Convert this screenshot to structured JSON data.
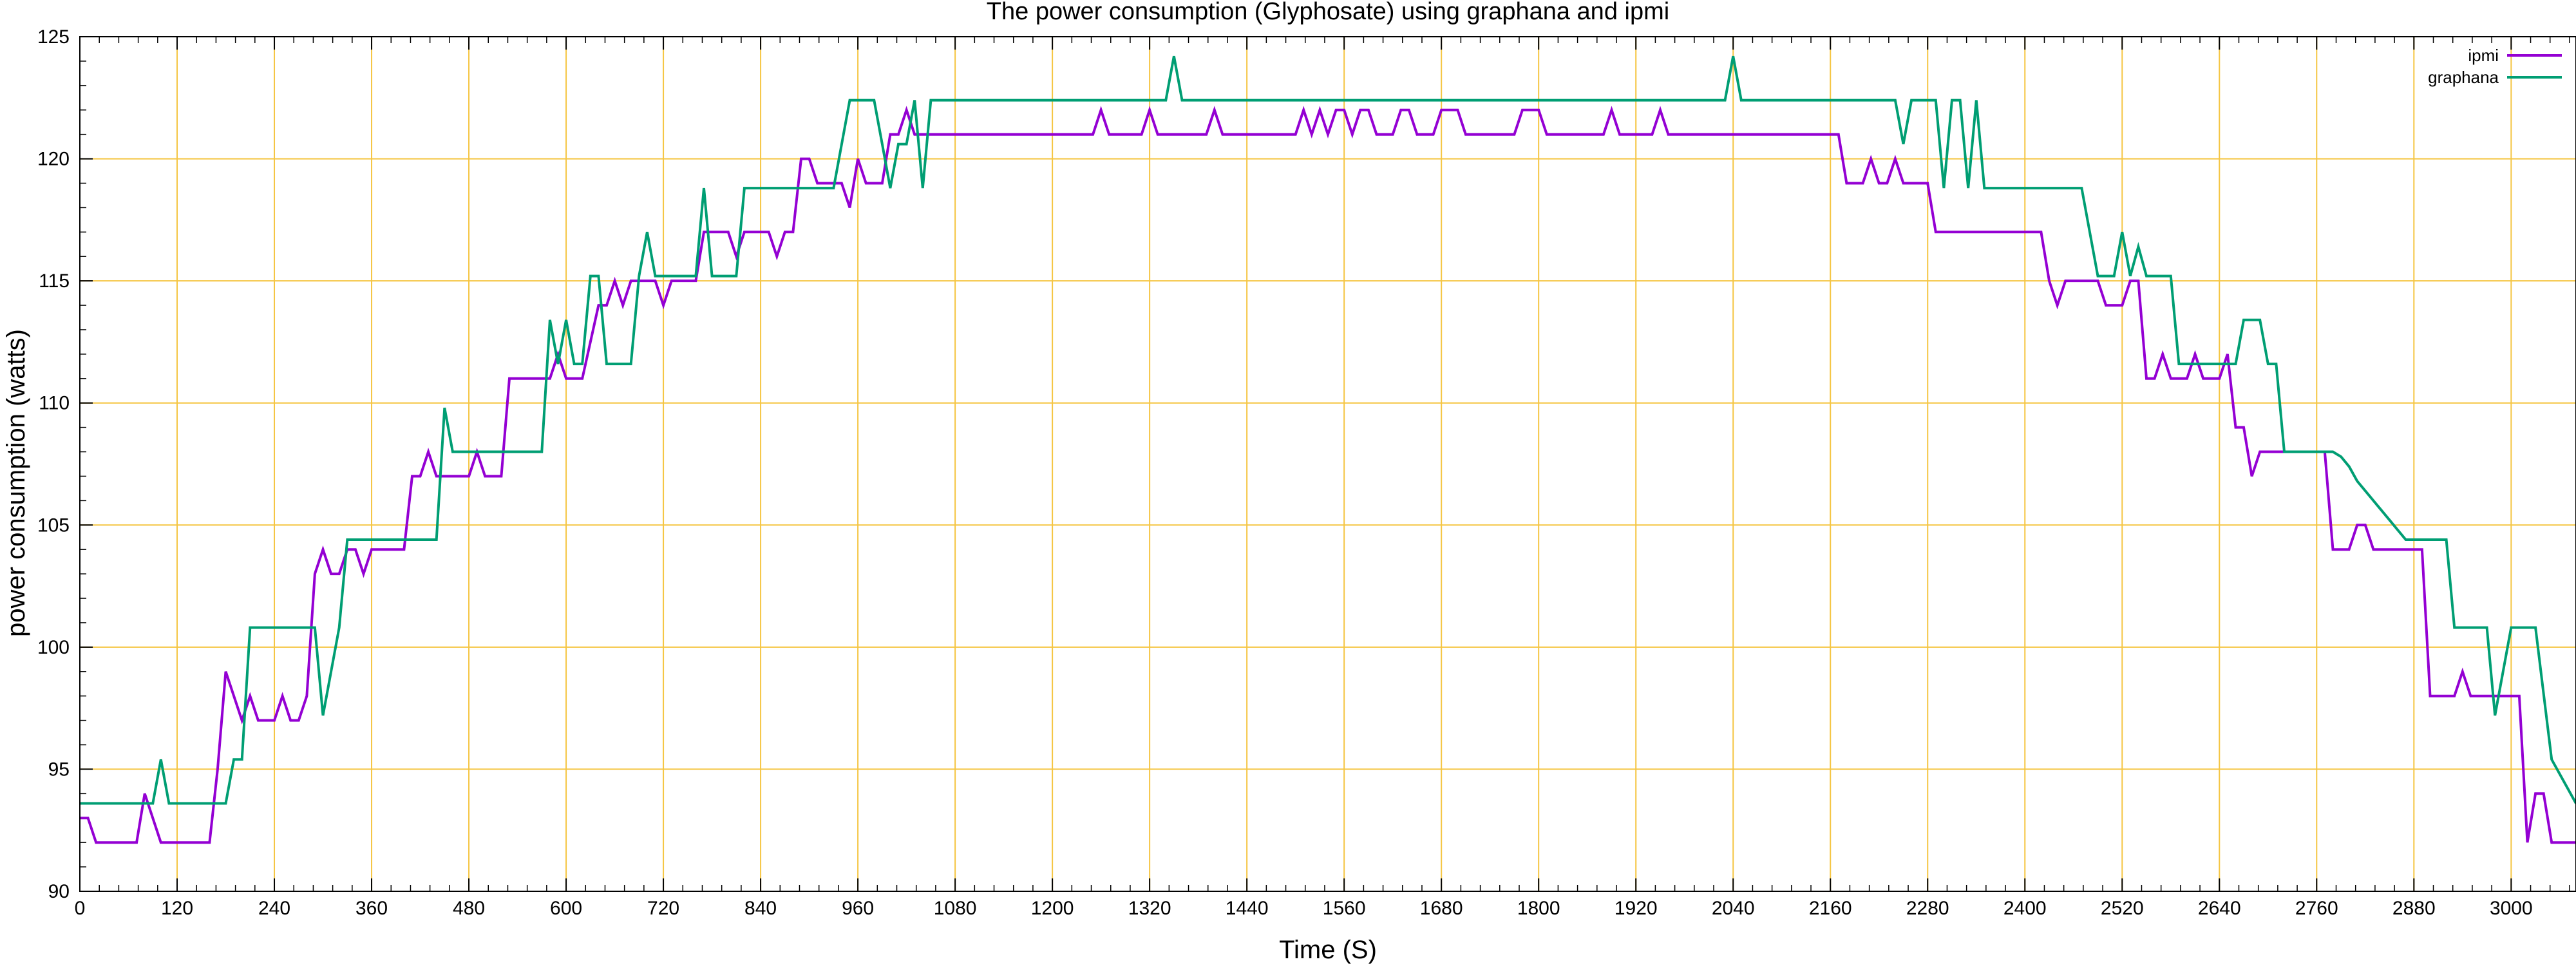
{
  "chart_data": {
    "type": "line",
    "title": "The power consumption (Glyphosate) using graphana and ipmi",
    "xlabel": "Time (S)",
    "ylabel": "power consumption (watts)",
    "xlim": [
      0,
      3080
    ],
    "ylim": [
      90,
      125
    ],
    "x_ticks": [
      0,
      120,
      240,
      360,
      480,
      600,
      720,
      840,
      960,
      1080,
      1200,
      1320,
      1440,
      1560,
      1680,
      1800,
      1920,
      2040,
      2160,
      2280,
      2400,
      2520,
      2640,
      2760,
      2880,
      3000
    ],
    "y_ticks": [
      90,
      95,
      100,
      105,
      110,
      115,
      120,
      125
    ],
    "grid": true,
    "grid_color": "#f5c542",
    "legend_position": "top-right",
    "series": [
      {
        "name": "ipmi",
        "color": "#9400d3",
        "points": [
          [
            0,
            93
          ],
          [
            10,
            93
          ],
          [
            20,
            92
          ],
          [
            70,
            92
          ],
          [
            80,
            94
          ],
          [
            100,
            92
          ],
          [
            160,
            92
          ],
          [
            170,
            95
          ],
          [
            180,
            99
          ],
          [
            200,
            97
          ],
          [
            210,
            98
          ],
          [
            220,
            97
          ],
          [
            240,
            97
          ],
          [
            250,
            98
          ],
          [
            260,
            97
          ],
          [
            270,
            97
          ],
          [
            280,
            98
          ],
          [
            290,
            103
          ],
          [
            300,
            104
          ],
          [
            310,
            103
          ],
          [
            320,
            103
          ],
          [
            330,
            104
          ],
          [
            340,
            104
          ],
          [
            350,
            103
          ],
          [
            360,
            104
          ],
          [
            400,
            104
          ],
          [
            410,
            107
          ],
          [
            420,
            107
          ],
          [
            430,
            108
          ],
          [
            440,
            107
          ],
          [
            480,
            107
          ],
          [
            490,
            108
          ],
          [
            500,
            107
          ],
          [
            520,
            107
          ],
          [
            530,
            111
          ],
          [
            580,
            111
          ],
          [
            590,
            112
          ],
          [
            600,
            111
          ],
          [
            620,
            111
          ],
          [
            640,
            114
          ],
          [
            650,
            114
          ],
          [
            660,
            115
          ],
          [
            670,
            114
          ],
          [
            680,
            115
          ],
          [
            710,
            115
          ],
          [
            720,
            114
          ],
          [
            730,
            115
          ],
          [
            760,
            115
          ],
          [
            770,
            117
          ],
          [
            800,
            117
          ],
          [
            810,
            116
          ],
          [
            820,
            117
          ],
          [
            850,
            117
          ],
          [
            860,
            116
          ],
          [
            870,
            117
          ],
          [
            880,
            117
          ],
          [
            890,
            120
          ],
          [
            900,
            120
          ],
          [
            910,
            119
          ],
          [
            940,
            119
          ],
          [
            950,
            118
          ],
          [
            960,
            120
          ],
          [
            970,
            119
          ],
          [
            990,
            119
          ],
          [
            1000,
            121
          ],
          [
            1010,
            121
          ],
          [
            1020,
            122
          ],
          [
            1030,
            121
          ],
          [
            1250,
            121
          ],
          [
            1260,
            122
          ],
          [
            1270,
            121
          ],
          [
            1310,
            121
          ],
          [
            1320,
            122
          ],
          [
            1330,
            121
          ],
          [
            1390,
            121
          ],
          [
            1400,
            122
          ],
          [
            1410,
            121
          ],
          [
            1500,
            121
          ],
          [
            1510,
            122
          ],
          [
            1520,
            121
          ],
          [
            1530,
            122
          ],
          [
            1540,
            121
          ],
          [
            1550,
            122
          ],
          [
            1560,
            122
          ],
          [
            1570,
            121
          ],
          [
            1580,
            122
          ],
          [
            1590,
            122
          ],
          [
            1600,
            121
          ],
          [
            1620,
            121
          ],
          [
            1630,
            122
          ],
          [
            1640,
            122
          ],
          [
            1650,
            121
          ],
          [
            1670,
            121
          ],
          [
            1680,
            122
          ],
          [
            1700,
            122
          ],
          [
            1710,
            121
          ],
          [
            1770,
            121
          ],
          [
            1780,
            122
          ],
          [
            1800,
            122
          ],
          [
            1810,
            121
          ],
          [
            1880,
            121
          ],
          [
            1890,
            122
          ],
          [
            1900,
            121
          ],
          [
            1940,
            121
          ],
          [
            1950,
            122
          ],
          [
            1960,
            121
          ],
          [
            2170,
            121
          ],
          [
            2180,
            119
          ],
          [
            2200,
            119
          ],
          [
            2210,
            120
          ],
          [
            2220,
            119
          ],
          [
            2230,
            119
          ],
          [
            2240,
            120
          ],
          [
            2250,
            119
          ],
          [
            2280,
            119
          ],
          [
            2290,
            117
          ],
          [
            2420,
            117
          ],
          [
            2430,
            115
          ],
          [
            2440,
            114
          ],
          [
            2450,
            115
          ],
          [
            2490,
            115
          ],
          [
            2500,
            114
          ],
          [
            2520,
            114
          ],
          [
            2530,
            115
          ],
          [
            2540,
            115
          ],
          [
            2550,
            111
          ],
          [
            2560,
            111
          ],
          [
            2570,
            112
          ],
          [
            2580,
            111
          ],
          [
            2600,
            111
          ],
          [
            2610,
            112
          ],
          [
            2620,
            111
          ],
          [
            2640,
            111
          ],
          [
            2650,
            112
          ],
          [
            2660,
            109
          ],
          [
            2670,
            109
          ],
          [
            2680,
            107
          ],
          [
            2690,
            108
          ],
          [
            2730,
            108
          ],
          [
            2740,
            108
          ],
          [
            2770,
            108
          ],
          [
            2780,
            104
          ],
          [
            2800,
            104
          ],
          [
            2810,
            105
          ],
          [
            2820,
            105
          ],
          [
            2830,
            104
          ],
          [
            2890,
            104
          ],
          [
            2900,
            98
          ],
          [
            2930,
            98
          ],
          [
            2940,
            99
          ],
          [
            2950,
            98
          ],
          [
            3010,
            98
          ],
          [
            3020,
            92
          ],
          [
            3030,
            94
          ],
          [
            3040,
            94
          ],
          [
            3050,
            92
          ],
          [
            3080,
            92
          ]
        ]
      },
      {
        "name": "graphana",
        "color": "#009e73",
        "points": [
          [
            0,
            93.6
          ],
          [
            80,
            93.6
          ],
          [
            90,
            93.6
          ],
          [
            100,
            95.4
          ],
          [
            110,
            93.6
          ],
          [
            180,
            93.6
          ],
          [
            190,
            95.4
          ],
          [
            200,
            95.4
          ],
          [
            210,
            100.8
          ],
          [
            290,
            100.8
          ],
          [
            300,
            97.2
          ],
          [
            310,
            99
          ],
          [
            320,
            100.8
          ],
          [
            330,
            104.4
          ],
          [
            440,
            104.4
          ],
          [
            450,
            109.8
          ],
          [
            460,
            108
          ],
          [
            570,
            108
          ],
          [
            580,
            113.4
          ],
          [
            590,
            111.6
          ],
          [
            600,
            113.4
          ],
          [
            610,
            111.6
          ],
          [
            620,
            111.6
          ],
          [
            630,
            115.2
          ],
          [
            640,
            115.2
          ],
          [
            650,
            111.6
          ],
          [
            680,
            111.6
          ],
          [
            690,
            115.2
          ],
          [
            700,
            117
          ],
          [
            710,
            115.2
          ],
          [
            760,
            115.2
          ],
          [
            770,
            118.8
          ],
          [
            780,
            115.2
          ],
          [
            810,
            115.2
          ],
          [
            820,
            118.8
          ],
          [
            930,
            118.8
          ],
          [
            950,
            122.4
          ],
          [
            980,
            122.4
          ],
          [
            990,
            120.6
          ],
          [
            1000,
            118.8
          ],
          [
            1010,
            120.6
          ],
          [
            1020,
            120.6
          ],
          [
            1030,
            122.4
          ],
          [
            1040,
            118.8
          ],
          [
            1050,
            122.4
          ],
          [
            1340,
            122.4
          ],
          [
            1350,
            124.2
          ],
          [
            1360,
            122.4
          ],
          [
            2030,
            122.4
          ],
          [
            2040,
            124.2
          ],
          [
            2050,
            122.4
          ],
          [
            2240,
            122.4
          ],
          [
            2250,
            120.6
          ],
          [
            2260,
            122.4
          ],
          [
            2290,
            122.4
          ],
          [
            2300,
            118.8
          ],
          [
            2310,
            122.4
          ],
          [
            2320,
            122.4
          ],
          [
            2330,
            118.8
          ],
          [
            2340,
            122.4
          ],
          [
            2350,
            118.8
          ],
          [
            2470,
            118.8
          ],
          [
            2490,
            115.2
          ],
          [
            2510,
            115.2
          ],
          [
            2520,
            117
          ],
          [
            2530,
            115.2
          ],
          [
            2540,
            116.4
          ],
          [
            2550,
            115.2
          ],
          [
            2580,
            115.2
          ],
          [
            2590,
            111.6
          ],
          [
            2660,
            111.6
          ],
          [
            2670,
            113.4
          ],
          [
            2690,
            113.4
          ],
          [
            2700,
            111.6
          ],
          [
            2710,
            111.6
          ],
          [
            2720,
            108
          ],
          [
            2780,
            108
          ],
          [
            2790,
            107.8
          ],
          [
            2800,
            107.4
          ],
          [
            2810,
            106.8
          ],
          [
            2850,
            105.2
          ],
          [
            2860,
            104.8
          ],
          [
            2870,
            104.4
          ],
          [
            2920,
            104.4
          ],
          [
            2930,
            100.8
          ],
          [
            2970,
            100.8
          ],
          [
            2980,
            97.2
          ],
          [
            3000,
            100.8
          ],
          [
            3030,
            100.8
          ],
          [
            3050,
            95.4
          ],
          [
            3080,
            93.6
          ]
        ]
      }
    ]
  }
}
